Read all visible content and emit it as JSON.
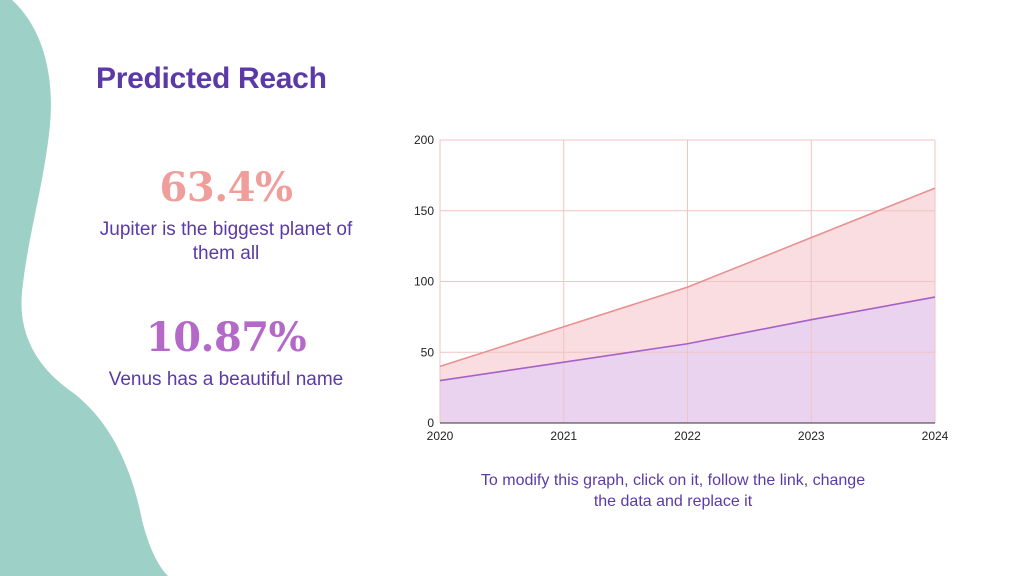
{
  "slide": {
    "title": "Predicted Reach",
    "caption": "To modify this graph, click on it, follow the link, change the data and replace it"
  },
  "stats": [
    {
      "value": "63.4%",
      "description": "Jupiter is the biggest planet of them all"
    },
    {
      "value": "10.87%",
      "description": "Venus has a beautiful name"
    }
  ],
  "colors": {
    "title": "#5b3aa8",
    "blob": "#9dd1c7",
    "stat_one": "#ef9e9c",
    "stat_two": "#b469c9",
    "grid": "#f1c3c3"
  },
  "chart_data": {
    "type": "area",
    "x": [
      "2020",
      "2021",
      "2022",
      "2023",
      "2024"
    ],
    "ylim": [
      0,
      200
    ],
    "yticks": [
      "0",
      "50",
      "100",
      "150",
      "200"
    ],
    "grid": true,
    "series": [
      {
        "values": [
          40,
          68,
          96,
          131,
          166
        ],
        "color": "#ea9090",
        "fill": "#f9dde0"
      },
      {
        "values": [
          30,
          43,
          56,
          73,
          89
        ],
        "color": "#a860c6",
        "fill": "#e9d3ee"
      }
    ]
  }
}
